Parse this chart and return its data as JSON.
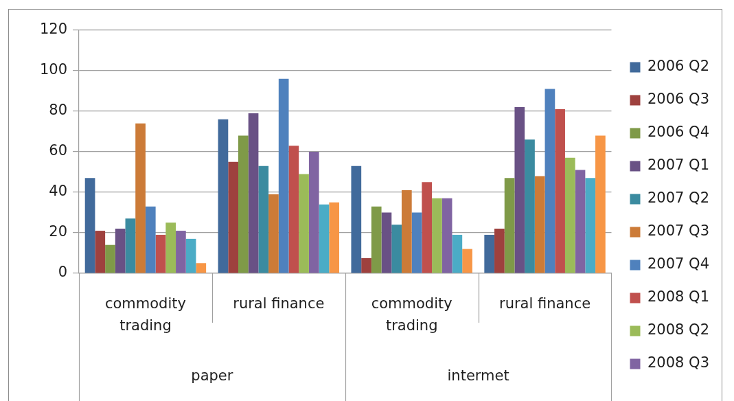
{
  "chart_data": {
    "type": "bar",
    "categories": [
      "commodity trading",
      "rural finance",
      "commodity trading",
      "rural finance"
    ],
    "annotations": [
      "paper",
      "intermet"
    ],
    "series": [
      {
        "name": "2006 Q2",
        "color": "#416a9b",
        "values": [
          47,
          76,
          53,
          19
        ]
      },
      {
        "name": "2006 Q3",
        "color": "#9e413e",
        "values": [
          21,
          55,
          7.5,
          22
        ]
      },
      {
        "name": "2006 Q4",
        "color": "#7f9a48",
        "values": [
          14,
          68,
          33,
          47
        ]
      },
      {
        "name": "2007 Q1",
        "color": "#695185",
        "values": [
          22,
          79,
          30,
          82
        ]
      },
      {
        "name": "2007 Q2",
        "color": "#3b8ba0",
        "values": [
          27,
          53,
          24,
          66
        ]
      },
      {
        "name": "2007 Q3",
        "color": "#cc7b38",
        "values": [
          74,
          39,
          41,
          48
        ]
      },
      {
        "name": "2007 Q4",
        "color": "#4f81bd",
        "values": [
          33,
          96,
          30,
          91
        ]
      },
      {
        "name": "2008 Q1",
        "color": "#c0504d",
        "values": [
          19,
          63,
          45,
          81
        ]
      },
      {
        "name": "2008 Q2",
        "color": "#9bbb59",
        "values": [
          25,
          49,
          37,
          57
        ]
      },
      {
        "name": "2008 Q3",
        "color": "#8064a2",
        "values": [
          21,
          60,
          37,
          51
        ]
      },
      {
        "color": "#4bacc6",
        "values": [
          17,
          34,
          19,
          47
        ]
      },
      {
        "color": "#f79646",
        "values": [
          5,
          35,
          12,
          68
        ]
      }
    ],
    "ylim": [
      0,
      120
    ],
    "yticks": [
      0,
      20,
      40,
      60,
      80,
      100,
      120
    ],
    "grid": "y",
    "legend": "right"
  }
}
